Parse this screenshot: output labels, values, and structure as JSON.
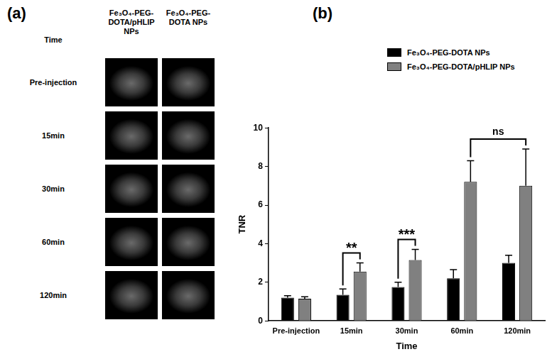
{
  "figure": {
    "panel_a": {
      "label": "(a)",
      "header": "Time",
      "columns": [
        "Fe₃O₄-PEG-DOTA/pHLIP NPs",
        "Fe₃O₄-PEG-DOTA NPs"
      ],
      "rows": [
        "Pre-injection",
        "15min",
        "30min",
        "60min",
        "120min"
      ]
    },
    "panel_b": {
      "label": "(b)"
    }
  },
  "chart_data": {
    "type": "bar",
    "categories": [
      "Pre-injection",
      "15min",
      "30min",
      "60min",
      "120min"
    ],
    "series": [
      {
        "name": "Fe₃O₄-PEG-DOTA NPs",
        "color": "#000000",
        "values": [
          1.2,
          1.35,
          1.75,
          2.2,
          3.0
        ],
        "errors": [
          0.1,
          0.3,
          0.25,
          0.45,
          0.4
        ]
      },
      {
        "name": "Fe₃O₄-PEG-DOTA/pHLIP NPs",
        "color": "#808080",
        "values": [
          1.15,
          2.55,
          3.15,
          7.2,
          7.0
        ],
        "errors": [
          0.1,
          0.45,
          0.55,
          1.1,
          1.9
        ]
      }
    ],
    "x_label": "Time",
    "y_label": "TNR",
    "ylim": [
      0,
      10
    ],
    "yticks": [
      0,
      2,
      4,
      6,
      8,
      10
    ],
    "grid": false,
    "legend": "top-right",
    "annotations": [
      {
        "text": "**",
        "from": [
          "15min",
          "Fe₃O₄-PEG-DOTA NPs"
        ],
        "to": [
          "15min",
          "Fe₃O₄-PEG-DOTA/pHLIP NPs"
        ]
      },
      {
        "text": "***",
        "from": [
          "30min",
          "Fe₃O₄-PEG-DOTA NPs"
        ],
        "to": [
          "30min",
          "Fe₃O₄-PEG-DOTA/pHLIP NPs"
        ]
      },
      {
        "text": "ns",
        "from": [
          "60min",
          "Fe₃O₄-PEG-DOTA/pHLIP NPs"
        ],
        "to": [
          "120min",
          "Fe₃O₄-PEG-DOTA/pHLIP NPs"
        ]
      }
    ]
  }
}
